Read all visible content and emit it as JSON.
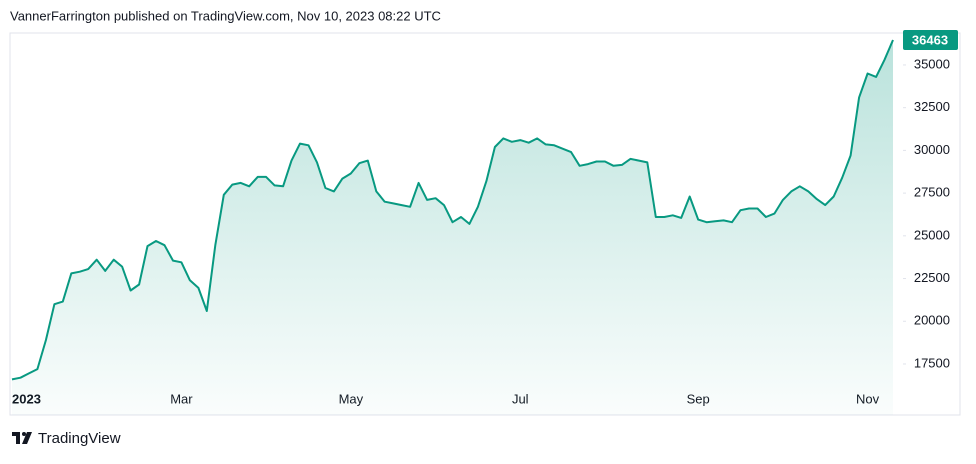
{
  "chart_data": {
    "type": "area",
    "title": "VannerFarrington published on TradingView.com, Nov 10, 2023 08:22 UTC",
    "brand": "TradingView",
    "color": "#089981",
    "categories": [
      "2023",
      null,
      null,
      null,
      null,
      null,
      null,
      null,
      null,
      null,
      null,
      null,
      null,
      null,
      null,
      null,
      null,
      null,
      null,
      null,
      "Mar",
      null,
      null,
      null,
      null,
      null,
      null,
      null,
      null,
      null,
      null,
      null,
      null,
      null,
      null,
      null,
      null,
      null,
      null,
      null,
      "May",
      null,
      null,
      null,
      null,
      null,
      null,
      null,
      null,
      null,
      null,
      null,
      null,
      null,
      null,
      null,
      null,
      null,
      null,
      null,
      "Jul",
      null,
      null,
      null,
      null,
      null,
      null,
      null,
      null,
      null,
      null,
      null,
      null,
      null,
      null,
      null,
      null,
      null,
      null,
      null,
      null,
      "Sep",
      null,
      null,
      null,
      null,
      null,
      null,
      null,
      null,
      null,
      null,
      null,
      null,
      null,
      null,
      null,
      null,
      null,
      null,
      null,
      "Nov",
      null,
      null,
      null
    ],
    "values": [
      16600,
      16700,
      16950,
      17200,
      18900,
      21000,
      21150,
      22800,
      22900,
      23050,
      23600,
      22950,
      23600,
      23200,
      21800,
      22150,
      24400,
      24700,
      24450,
      23550,
      23450,
      22400,
      21950,
      20600,
      24450,
      27400,
      28000,
      28100,
      27900,
      28450,
      28450,
      27950,
      27900,
      29400,
      30400,
      30300,
      29300,
      27800,
      27600,
      28350,
      28650,
      29250,
      29400,
      27600,
      27000,
      26900,
      26800,
      26700,
      28100,
      27100,
      27200,
      26800,
      25800,
      26100,
      25700,
      26700,
      28200,
      30200,
      30700,
      30500,
      30600,
      30450,
      30700,
      30350,
      30300,
      30100,
      29900,
      29100,
      29200,
      29350,
      29350,
      29100,
      29150,
      29500,
      29400,
      29300,
      26100,
      26100,
      26200,
      26050,
      27300,
      25950,
      25800,
      25850,
      25900,
      25800,
      26500,
      26600,
      26600,
      26100,
      26300,
      27100,
      27600,
      27900,
      27600,
      27150,
      26800,
      27300,
      28400,
      29700,
      33100,
      34500,
      34300,
      35300,
      36463
    ],
    "ylim": [
      16270,
      36870
    ],
    "yticks": [
      17500,
      20000,
      22500,
      25000,
      27500,
      30000,
      32500,
      35000
    ]
  }
}
